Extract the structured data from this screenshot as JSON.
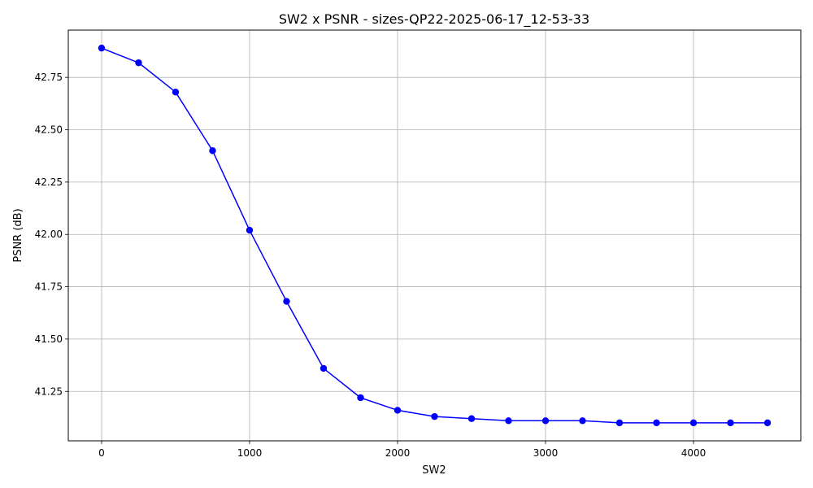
{
  "chart_data": {
    "type": "line",
    "title": "SW2 x PSNR - sizes-QP22-2025-06-17_12-53-33",
    "xlabel": "SW2",
    "ylabel": "PSNR (dB)",
    "xlim": [
      -225,
      4725
    ],
    "ylim": [
      41.014,
      42.976
    ],
    "grid": true,
    "x_ticks": [
      0,
      1000,
      2000,
      3000,
      4000
    ],
    "x_tick_labels": [
      "0",
      "1000",
      "2000",
      "3000",
      "4000"
    ],
    "y_ticks": [
      41.25,
      41.5,
      41.75,
      42.0,
      42.25,
      42.5,
      42.75
    ],
    "y_tick_labels": [
      "41.25",
      "41.50",
      "41.75",
      "42.00",
      "42.25",
      "42.50",
      "42.75"
    ],
    "series": [
      {
        "color": "#0000ff",
        "marker": "circle",
        "x": [
          0,
          250,
          500,
          750,
          1000,
          1250,
          1500,
          1750,
          2000,
          2250,
          2500,
          2750,
          3000,
          3250,
          3500,
          3750,
          4000,
          4250,
          4500
        ],
        "y": [
          42.89,
          42.82,
          42.68,
          42.4,
          42.02,
          41.68,
          41.36,
          41.22,
          41.16,
          41.13,
          41.12,
          41.11,
          41.11,
          41.11,
          41.1,
          41.1,
          41.1,
          41.1,
          41.1
        ]
      }
    ]
  }
}
